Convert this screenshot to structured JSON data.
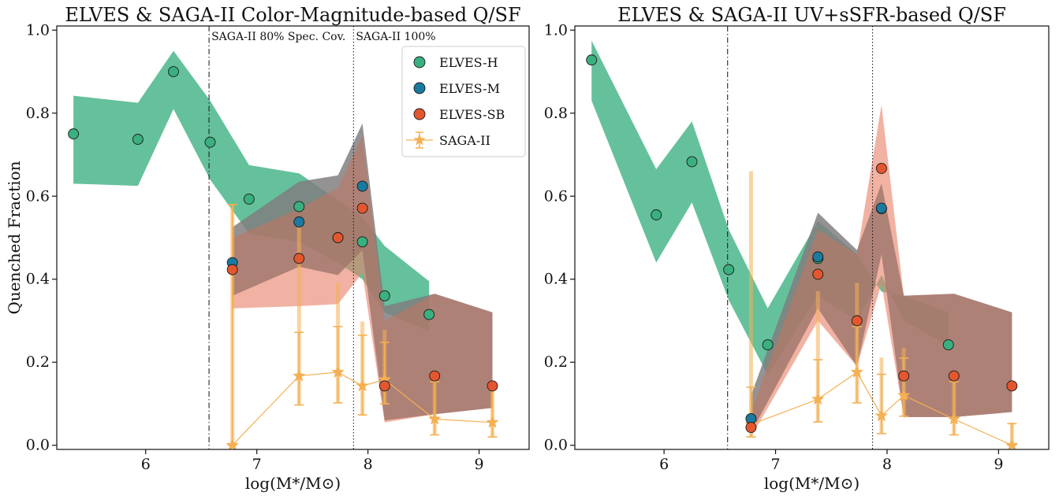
{
  "colors": {
    "elves_h": "#3aaf7f",
    "elves_m": "#1a7aa0",
    "elves_sb": "#e4572e",
    "saga": "#f4b053",
    "band_h": "#3aaf7f",
    "band_m": "#4a9cc0",
    "band_sb": "#e8826a",
    "band_overlap": "#9a6b5c"
  },
  "legend": {
    "entries": [
      {
        "key": "elves_h",
        "label": "ELVES-H",
        "marker": "circle"
      },
      {
        "key": "elves_m",
        "label": "ELVES-M",
        "marker": "circle"
      },
      {
        "key": "elves_sb",
        "label": "ELVES-SB",
        "marker": "circle"
      },
      {
        "key": "saga",
        "label": "SAGA-II",
        "marker": "star-errorbar"
      }
    ]
  },
  "chart_data": [
    {
      "type": "scatter",
      "title": "ELVES & SAGA-II Color-Magnitude-based Q/SF",
      "xlabel": "log(M*/M⊙)",
      "ylabel": "Quenched Fraction",
      "xlim": [
        5.2,
        9.45
      ],
      "ylim": [
        -0.01,
        1.01
      ],
      "xticks": [
        6,
        7,
        8,
        9
      ],
      "yticks": [
        0.0,
        0.2,
        0.4,
        0.6,
        0.8,
        1.0
      ],
      "grid": false,
      "legend_position": "top-right",
      "vlines": [
        {
          "x": 6.57,
          "style": "dashdot",
          "label": "SAGA-II 80% Spec. Cov."
        },
        {
          "x": 7.87,
          "style": "dotted",
          "label": "SAGA-II 100%"
        }
      ],
      "series": [
        {
          "key": "elves_h",
          "name": "ELVES-H",
          "x": [
            5.35,
            5.93,
            6.25,
            6.58,
            6.93,
            7.38,
            7.95,
            8.15,
            8.55
          ],
          "y": [
            0.75,
            0.737,
            0.9,
            0.73,
            0.593,
            0.575,
            0.49,
            0.36,
            0.315
          ],
          "band_x": [
            5.35,
            5.93,
            6.25,
            6.58,
            6.93,
            7.38,
            7.73,
            7.95,
            8.15,
            8.55
          ],
          "band_lo": [
            0.63,
            0.625,
            0.81,
            0.64,
            0.51,
            0.49,
            0.44,
            0.4,
            0.32,
            0.275
          ],
          "band_hi": [
            0.842,
            0.825,
            0.95,
            0.83,
            0.675,
            0.655,
            0.59,
            0.55,
            0.48,
            0.395
          ]
        },
        {
          "key": "elves_m",
          "name": "ELVES-M",
          "x": [
            6.78,
            7.38,
            7.73,
            7.95
          ],
          "y": [
            0.44,
            0.538,
            0.5,
            0.624
          ],
          "band_x": [
            6.78,
            7.38,
            7.73,
            7.95,
            8.15,
            8.6,
            9.12
          ],
          "band_lo": [
            0.36,
            0.43,
            0.41,
            0.47,
            0.06,
            0.075,
            0.09
          ],
          "band_hi": [
            0.525,
            0.635,
            0.65,
            0.775,
            0.335,
            0.365,
            0.32
          ]
        },
        {
          "key": "elves_sb",
          "name": "ELVES-SB",
          "x": [
            6.78,
            7.38,
            7.73,
            7.95,
            8.15,
            8.6,
            9.12
          ],
          "y": [
            0.423,
            0.45,
            0.5,
            0.571,
            0.143,
            0.167,
            0.143
          ],
          "band_x": [
            6.78,
            7.38,
            7.73,
            7.95,
            8.15,
            8.6,
            9.12
          ],
          "band_lo": [
            0.33,
            0.335,
            0.34,
            0.415,
            0.055,
            0.075,
            0.09
          ],
          "band_hi": [
            0.5,
            0.57,
            0.62,
            0.745,
            0.3,
            0.365,
            0.32
          ]
        },
        {
          "key": "saga",
          "name": "SAGA-II",
          "x": [
            6.78,
            7.38,
            7.73,
            7.95,
            8.15,
            8.6,
            9.12
          ],
          "y": [
            0.0,
            0.167,
            0.176,
            0.143,
            0.158,
            0.063,
            0.055
          ],
          "yerr_lo": [
            0.0,
            0.07,
            0.074,
            0.07,
            0.058,
            0.038,
            0.035
          ],
          "yerr_hi": [
            0.58,
            0.105,
            0.11,
            0.122,
            0.09,
            0.09,
            0.08
          ],
          "yerr_lo2": [
            0.0,
            0.07,
            0.074,
            0.07,
            0.058,
            0.038,
            0.035
          ],
          "yerr_hi2": [
            0.58,
            0.38,
            0.215,
            0.155,
            0.12,
            0.097,
            0.085
          ]
        }
      ]
    },
    {
      "type": "scatter",
      "title": "ELVES & SAGA-II UV+sSFR-based Q/SF",
      "xlabel": "log(M*/M⊙)",
      "ylabel": "",
      "xlim": [
        5.2,
        9.45
      ],
      "ylim": [
        -0.01,
        1.01
      ],
      "xticks": [
        6,
        7,
        8,
        9
      ],
      "yticks": [
        0.0,
        0.2,
        0.4,
        0.6,
        0.8,
        1.0
      ],
      "grid": false,
      "vlines": [
        {
          "x": 6.57,
          "style": "dashdot",
          "label": ""
        },
        {
          "x": 7.87,
          "style": "dotted",
          "label": ""
        }
      ],
      "series": [
        {
          "key": "elves_h",
          "name": "ELVES-H",
          "x": [
            5.35,
            5.93,
            6.25,
            6.58,
            6.93,
            7.38,
            7.95,
            8.55
          ],
          "y": [
            0.928,
            0.555,
            0.683,
            0.423,
            0.242,
            0.45,
            0.57,
            0.242
          ],
          "band_x": [
            5.35,
            5.93,
            6.25,
            6.58,
            6.93,
            7.38,
            7.73,
            7.95,
            8.15,
            8.55
          ],
          "band_lo": [
            0.83,
            0.44,
            0.585,
            0.35,
            0.17,
            0.36,
            0.3,
            0.41,
            0.3,
            0.24
          ],
          "band_hi": [
            0.975,
            0.665,
            0.78,
            0.52,
            0.33,
            0.54,
            0.46,
            0.37,
            0.36,
            0.32
          ]
        },
        {
          "key": "elves_m",
          "name": "ELVES-M",
          "x": [
            6.78,
            7.38,
            7.95
          ],
          "y": [
            0.064,
            0.454,
            0.571
          ],
          "band_x": [
            6.78,
            7.38,
            7.73,
            7.95,
            8.15,
            8.6,
            9.12
          ],
          "band_lo": [
            0.03,
            0.33,
            0.19,
            0.46,
            0.068,
            0.068,
            0.08
          ],
          "band_hi": [
            0.12,
            0.56,
            0.47,
            0.63,
            0.36,
            0.365,
            0.32
          ]
        },
        {
          "key": "elves_sb",
          "name": "ELVES-SB",
          "x": [
            6.78,
            7.38,
            7.73,
            7.95,
            8.15,
            8.6,
            9.12
          ],
          "y": [
            0.043,
            0.412,
            0.3,
            0.667,
            0.167,
            0.167,
            0.143
          ],
          "band_x": [
            6.78,
            7.38,
            7.73,
            7.95,
            8.15,
            8.6,
            9.12
          ],
          "band_lo": [
            0.02,
            0.3,
            0.19,
            0.39,
            0.068,
            0.068,
            0.08
          ],
          "band_hi": [
            0.08,
            0.52,
            0.46,
            0.82,
            0.36,
            0.365,
            0.32
          ]
        },
        {
          "key": "saga",
          "name": "SAGA-II",
          "x": [
            6.78,
            7.38,
            7.73,
            7.95,
            8.15,
            8.6,
            9.12
          ],
          "y": [
            0.05,
            0.111,
            0.176,
            0.071,
            0.12,
            0.063,
            0.0
          ],
          "yerr_lo": [
            0.03,
            0.055,
            0.074,
            0.043,
            0.05,
            0.038,
            0.0
          ],
          "yerr_hi": [
            0.09,
            0.095,
            0.11,
            0.1,
            0.09,
            0.09,
            0.052
          ],
          "yerr_lo2": [
            0.03,
            0.055,
            0.074,
            0.043,
            0.05,
            0.038,
            0.0
          ],
          "yerr_hi2": [
            0.61,
            0.26,
            0.215,
            0.14,
            0.115,
            0.097,
            0.055
          ]
        }
      ]
    }
  ]
}
